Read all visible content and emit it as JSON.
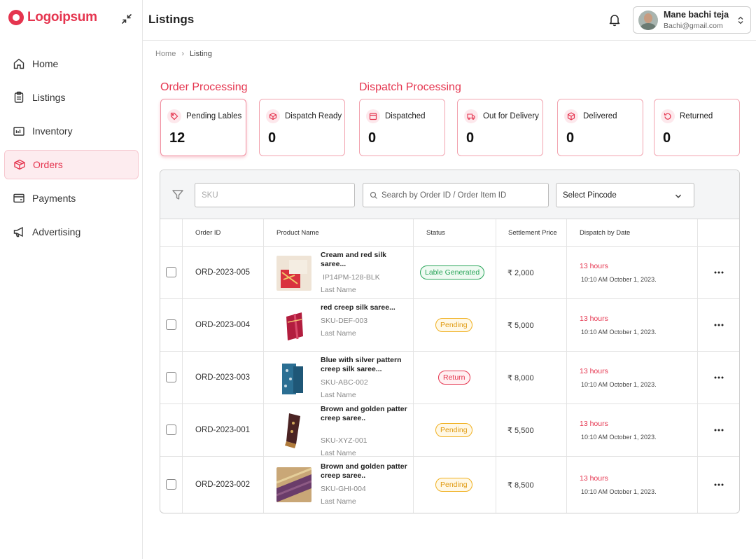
{
  "brand": {
    "name": "Logoipsum",
    "color": "#e5354f"
  },
  "sidebar": {
    "items": [
      {
        "label": "Home",
        "icon": "home-icon",
        "active": false
      },
      {
        "label": "Listings",
        "icon": "clipboard-icon",
        "active": false
      },
      {
        "label": "Inventory",
        "icon": "inventory-icon",
        "active": false
      },
      {
        "label": "Orders",
        "icon": "box-icon",
        "active": true
      },
      {
        "label": "Payments",
        "icon": "wallet-icon",
        "active": false
      },
      {
        "label": "Advertising",
        "icon": "megaphone-icon",
        "active": false
      }
    ]
  },
  "header": {
    "title": "Listings",
    "user": {
      "name": "Mane bachi teja",
      "email": "Bachi@gmail.com"
    }
  },
  "breadcrumb": {
    "home": "Home",
    "current": "Listing"
  },
  "sections": {
    "order_processing": "Order Processing",
    "dispatch_processing": "Dispatch Processing"
  },
  "cards": [
    {
      "label": "Pending Lables",
      "value": "12",
      "icon": "tag-icon"
    },
    {
      "label": "Dispatch Ready",
      "value": "0",
      "icon": "box-icon"
    },
    {
      "label": "Dispatched",
      "value": "0",
      "icon": "package-icon"
    },
    {
      "label": "Out for Delivery",
      "value": "0",
      "icon": "truck-icon"
    },
    {
      "label": "Delivered",
      "value": "0",
      "icon": "cube-icon"
    },
    {
      "label": "Returned",
      "value": "0",
      "icon": "return-icon"
    }
  ],
  "filters": {
    "sku_placeholder": "SKU",
    "search_placeholder": "Search by Order ID / Order Item ID",
    "pincode_label": "Select Pincode"
  },
  "table": {
    "columns": [
      "Order ID",
      "Product Name",
      "Status",
      "Settlement Price",
      "Dispatch by Date"
    ],
    "rows": [
      {
        "order_id": "ORD-2023-005",
        "name": "Cream and red silk saree...",
        "sku": "IP14PM-128-BLK",
        "last": "Last Name",
        "status": "Lable Generated",
        "status_type": "generated",
        "price": "₹ 2,000",
        "hours": "13 hours",
        "date": "10:10 AM October 1, 2023."
      },
      {
        "order_id": "ORD-2023-004",
        "name": "red creep silk saree...",
        "sku": "SKU-DEF-003",
        "last": "Last Name",
        "status": "Pending",
        "status_type": "pending",
        "price": "₹ 5,000",
        "hours": "13 hours",
        "date": "10:10 AM October 1, 2023."
      },
      {
        "order_id": "ORD-2023-003",
        "name": "Blue with silver pattern creep silk saree...",
        "sku": "SKU-ABC-002",
        "last": "Last Name",
        "status": "Return",
        "status_type": "return",
        "price": "₹ 8,000",
        "hours": "13 hours",
        "date": "10:10 AM October 1, 2023."
      },
      {
        "order_id": "ORD-2023-001",
        "name": "Brown and golden patter creep saree..",
        "sku": "SKU-XYZ-001",
        "last": "Last Name",
        "status": "Pending",
        "status_type": "pending",
        "price": "₹ 5,500",
        "hours": "13 hours",
        "date": "10:10 AM October 1, 2023."
      },
      {
        "order_id": "ORD-2023-002",
        "name": "Brown and golden patter creep saree..",
        "sku": "SKU-GHI-004",
        "last": "Last Name",
        "status": "Pending",
        "status_type": "pending",
        "price": "₹ 8,500",
        "hours": "13 hours",
        "date": "10:10 AM October 1, 2023."
      }
    ]
  },
  "colors": {
    "accent": "#e5354f",
    "pending": "#f0b020",
    "generated": "#2aa55a",
    "return": "#e5354f"
  }
}
